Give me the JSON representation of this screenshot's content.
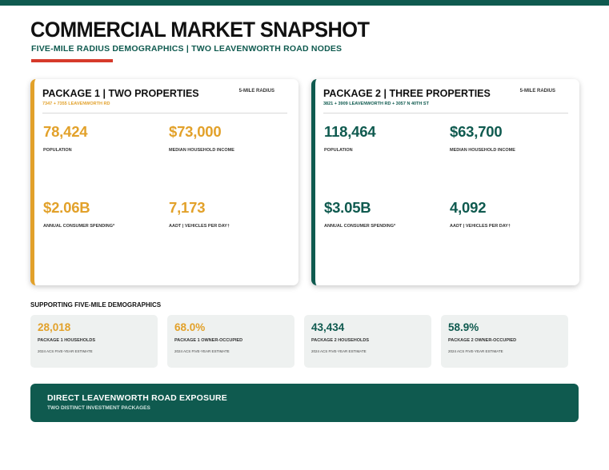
{
  "header": {
    "title": "COMMERCIAL MARKET SNAPSHOT",
    "subtitle": "FIVE-MILE RADIUS DEMOGRAPHICS | TWO LEAVENWORTH ROAD NODES"
  },
  "packages": [
    {
      "title": "PACKAGE 1 | TWO PROPERTIES",
      "radius": "5-MILE RADIUS",
      "address": "7347 + 7355 LEAVENWORTH RD",
      "stats": [
        {
          "value": "78,424",
          "label": "POPULATION"
        },
        {
          "value": "$73,000",
          "label": "MEDIAN HOUSEHOLD INCOME"
        },
        {
          "value": "$2.06B",
          "label": "ANNUAL CONSUMER SPENDING*"
        },
        {
          "value": "7,173",
          "label": "AADT | VEHICLES PER DAY†"
        }
      ]
    },
    {
      "title": "PACKAGE 2 | THREE PROPERTIES",
      "radius": "5-MILE RADIUS",
      "address": "3821 + 3909 LEAVENWORTH RD + 3057 N 40TH ST",
      "stats": [
        {
          "value": "118,464",
          "label": "POPULATION"
        },
        {
          "value": "$63,700",
          "label": "MEDIAN HOUSEHOLD INCOME"
        },
        {
          "value": "$3.05B",
          "label": "ANNUAL CONSUMER SPENDING*"
        },
        {
          "value": "4,092",
          "label": "AADT | VEHICLES PER DAY†"
        }
      ]
    }
  ],
  "supporting": {
    "heading": "SUPPORTING FIVE-MILE DEMOGRAPHICS",
    "items": [
      {
        "value": "28,018",
        "label": "PACKAGE 1 HOUSEHOLDS",
        "note": "2024 ACS FIVE-YEAR ESTIMATE",
        "color": "#e2a12a"
      },
      {
        "value": "68.0%",
        "label": "PACKAGE 1 OWNER-OCCUPIED",
        "note": "2024 ACS FIVE-YEAR ESTIMATE",
        "color": "#e2a12a"
      },
      {
        "value": "43,434",
        "label": "PACKAGE 2 HOUSEHOLDS",
        "note": "2024 ACS FIVE-YEAR ESTIMATE",
        "color": "#0f5a4f"
      },
      {
        "value": "58.9%",
        "label": "PACKAGE 2 OWNER-OCCUPIED",
        "note": "2024 ACS FIVE-YEAR ESTIMATE",
        "color": "#0f5a4f"
      }
    ]
  },
  "banner": {
    "title": "DIRECT LEAVENWORTH ROAD EXPOSURE",
    "subtitle": "TWO DISTINCT INVESTMENT PACKAGES"
  },
  "colors": {
    "brand_green": "#0f5a4f",
    "accent_gold": "#e2a12a",
    "accent_red": "#d63a2b"
  }
}
